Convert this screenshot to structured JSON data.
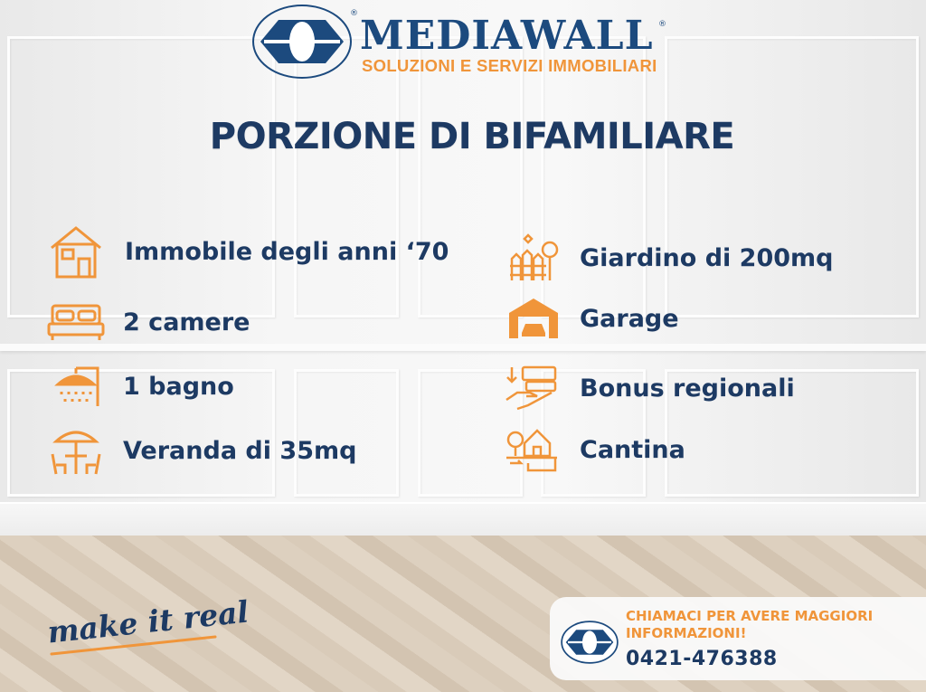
{
  "brand": {
    "name": "MEDIAWALL",
    "registered_mark": "®",
    "tagline": "SOLUZIONI E SERVIZI IMMOBILIARI"
  },
  "title": "PORZIONE DI BIFAMILIARE",
  "features_left": [
    {
      "icon": "house-icon",
      "label": "Immobile degli anni ‘70"
    },
    {
      "icon": "bed-icon",
      "label": "2 camere"
    },
    {
      "icon": "shower-icon",
      "label": "1 bagno"
    },
    {
      "icon": "patio-umbrella-icon",
      "label": "Veranda di 35mq"
    }
  ],
  "features_right": [
    {
      "icon": "garden-icon",
      "label": "Giardino di 200mq"
    },
    {
      "icon": "garage-icon",
      "label": "Garage"
    },
    {
      "icon": "money-hand-icon",
      "label": "Bonus regionali"
    },
    {
      "icon": "cellar-icon",
      "label": "Cantina"
    }
  ],
  "slogan": "make it real",
  "contact": {
    "cta": "CHIAMACI PER AVERE MAGGIORI INFORMAZIONI!",
    "phone": "0421-476388"
  },
  "colors": {
    "navy": "#1d3a63",
    "orange": "#f0953a"
  }
}
